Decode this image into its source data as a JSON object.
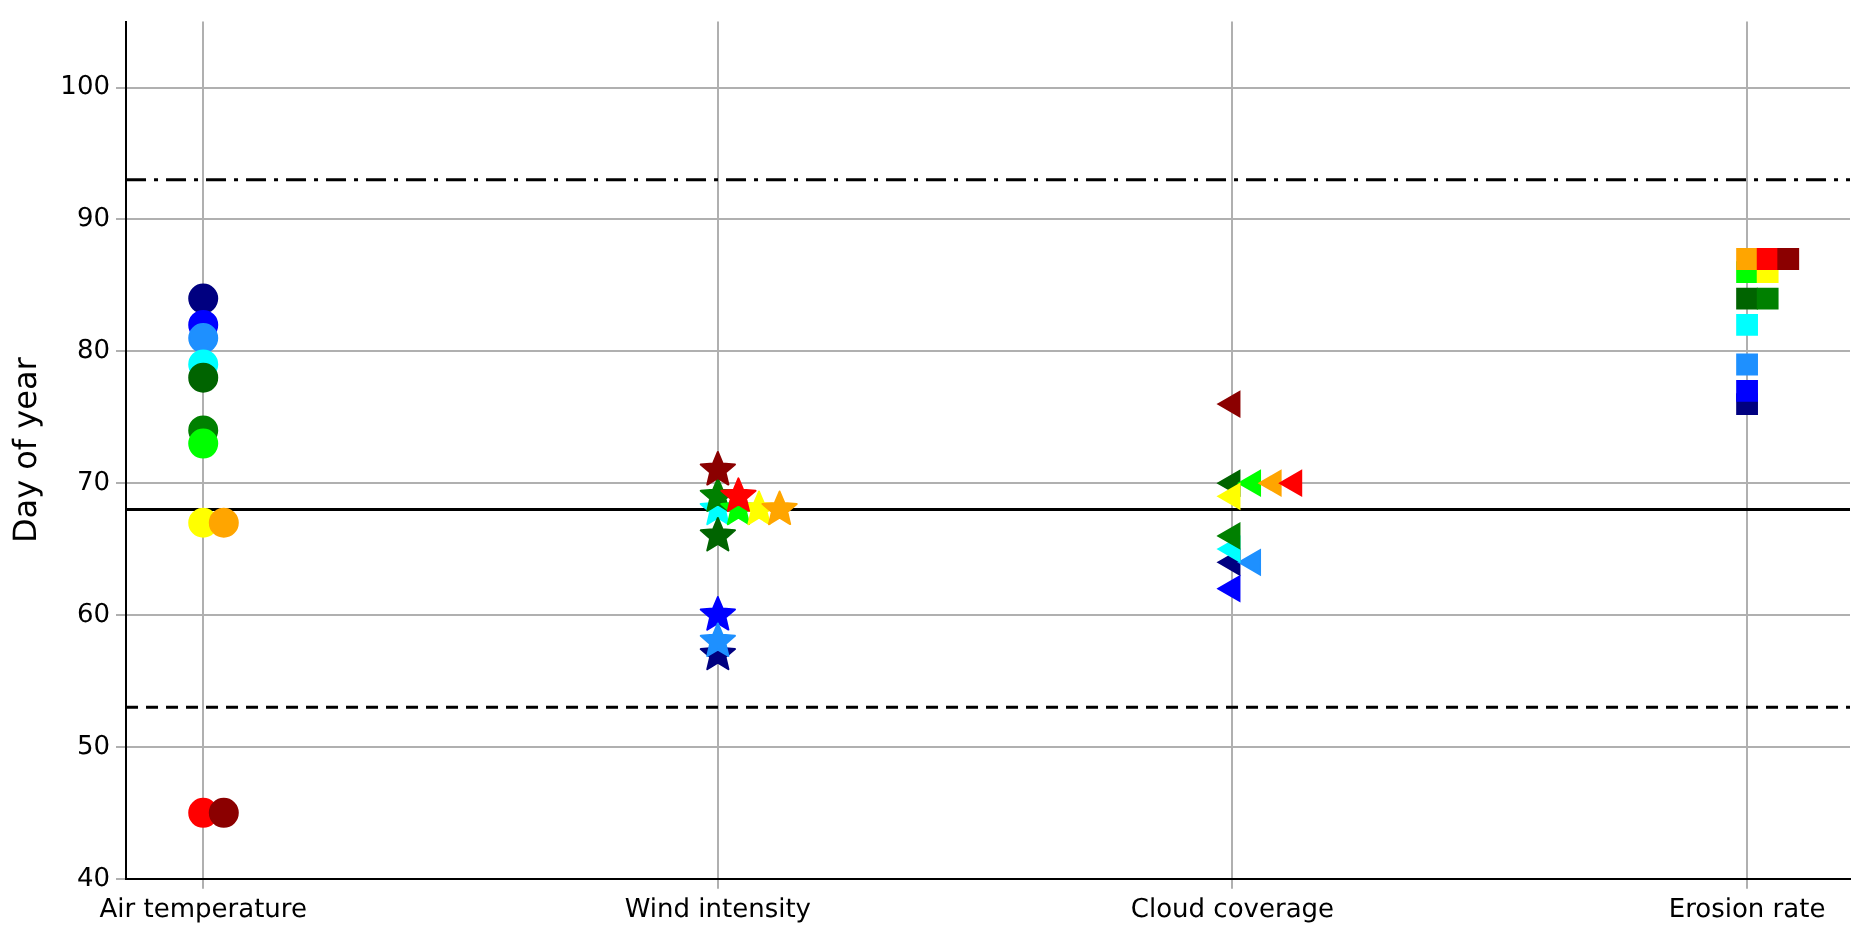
{
  "chart_data": {
    "type": "scatter",
    "ylabel": "Day of year",
    "categories": [
      "Air temperature",
      "Wind intensity",
      "Cloud coverage",
      "Erosion rate"
    ],
    "ylim": [
      40,
      105
    ],
    "yticks": [
      40,
      50,
      60,
      70,
      80,
      90,
      100
    ],
    "grid": true,
    "legend": false,
    "series": [
      {
        "marker": "circle",
        "x": [
          "Air temperature",
          "Air temperature",
          "Air temperature",
          "Air temperature",
          "Air temperature",
          "Air temperature",
          "Air temperature",
          "Air temperature",
          "Air temperature",
          "Air temperature",
          "Air temperature"
        ],
        "values": [
          84,
          82,
          81,
          79,
          78,
          74,
          73,
          67,
          67,
          45,
          45
        ],
        "colors": [
          "#000080",
          "#0000ff",
          "#1e90ff",
          "#00ffff",
          "#006400",
          "#008000",
          "#00ff00",
          "#ffff00",
          "#ffa500",
          "#ff0000",
          "#8b0000"
        ]
      },
      {
        "marker": "star",
        "x": [
          "Wind intensity",
          "Wind intensity",
          "Wind intensity",
          "Wind intensity",
          "Wind intensity",
          "Wind intensity",
          "Wind intensity",
          "Wind intensity",
          "Wind intensity",
          "Wind intensity",
          "Wind intensity"
        ],
        "values": [
          57,
          60,
          58,
          68,
          66,
          69,
          68,
          68,
          68,
          69,
          71
        ],
        "colors": [
          "#000080",
          "#0000ff",
          "#1e90ff",
          "#00ffff",
          "#006400",
          "#008000",
          "#00ff00",
          "#ffff00",
          "#ffa500",
          "#ff0000",
          "#8b0000"
        ]
      },
      {
        "marker": "triangle",
        "x": [
          "Cloud coverage",
          "Cloud coverage",
          "Cloud coverage",
          "Cloud coverage",
          "Cloud coverage",
          "Cloud coverage",
          "Cloud coverage",
          "Cloud coverage",
          "Cloud coverage",
          "Cloud coverage",
          "Cloud coverage"
        ],
        "values": [
          64,
          62,
          64,
          65,
          70,
          66,
          70,
          69,
          70,
          70,
          76
        ],
        "colors": [
          "#000080",
          "#0000ff",
          "#1e90ff",
          "#00ffff",
          "#006400",
          "#008000",
          "#00ff00",
          "#ffff00",
          "#ffa500",
          "#ff0000",
          "#8b0000"
        ]
      },
      {
        "marker": "square",
        "x": [
          "Erosion rate",
          "Erosion rate",
          "Erosion rate",
          "Erosion rate",
          "Erosion rate",
          "Erosion rate",
          "Erosion rate",
          "Erosion rate",
          "Erosion rate",
          "Erosion rate",
          "Erosion rate"
        ],
        "values": [
          76,
          77,
          79,
          82,
          84,
          84,
          86,
          86,
          87,
          87,
          87
        ],
        "colors": [
          "#000080",
          "#0000ff",
          "#1e90ff",
          "#00ffff",
          "#006400",
          "#008000",
          "#00ff00",
          "#ffff00",
          "#ffa500",
          "#ff0000",
          "#8b0000"
        ]
      }
    ],
    "ref_lines": [
      {
        "axis": "y",
        "value": 93,
        "color": "#000000",
        "line_style": "dashdot"
      },
      {
        "axis": "y",
        "value": 68,
        "color": "#000000",
        "line_style": "solid"
      },
      {
        "axis": "y",
        "value": 53,
        "color": "#000000",
        "line_style": "dashed"
      }
    ]
  }
}
